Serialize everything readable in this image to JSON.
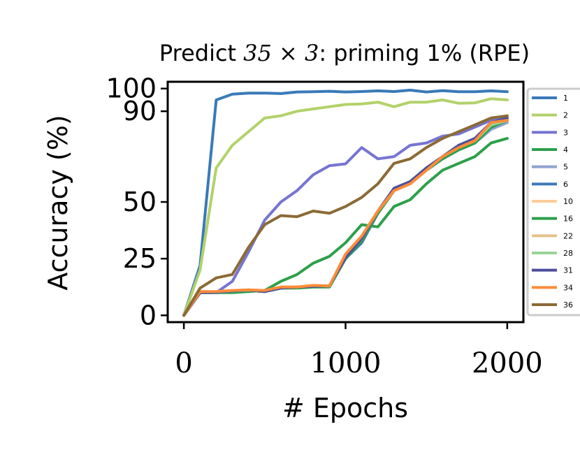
{
  "chart_data": {
    "type": "line",
    "title_prefix": "Predict",
    "title_math": "35 × 3",
    "title_suffix": ": priming 1% (RPE)",
    "xlabel": "# Epochs",
    "ylabel": "Accuracy (%)",
    "xlim": [
      -100,
      2100
    ],
    "ylim": [
      -3,
      103
    ],
    "xticks": [
      0,
      1000,
      2000
    ],
    "xtick_labels": [
      "0",
      "1000",
      "2000"
    ],
    "yticks": [
      0,
      25,
      50,
      90,
      100
    ],
    "ytick_labels": [
      "0",
      "25",
      "50",
      "90",
      "100"
    ],
    "grid": false,
    "legend_position": "right",
    "x": [
      0,
      100,
      200,
      300,
      400,
      500,
      600,
      700,
      800,
      900,
      1000,
      1100,
      1200,
      1300,
      1400,
      1500,
      1600,
      1700,
      1800,
      1900,
      2000
    ],
    "series": [
      {
        "name": "1",
        "color": "#3a7ab8",
        "values": [
          0,
          22,
          95,
          97.5,
          98,
          98,
          97.8,
          98.5,
          98.6,
          98.8,
          98.5,
          98.7,
          99,
          98.7,
          99.3,
          98.5,
          99.1,
          98.6,
          98.6,
          99,
          98.6
        ]
      },
      {
        "name": "2",
        "color": "#b2d26a",
        "values": [
          0,
          20,
          65,
          75,
          81,
          87,
          88,
          90,
          91,
          92,
          93,
          93.2,
          94,
          92,
          94,
          94,
          95,
          93.5,
          93.7,
          95.5,
          95
        ]
      },
      {
        "name": "3",
        "color": "#7674d3",
        "values": [
          0,
          10,
          10,
          15,
          28,
          42,
          50,
          55,
          62,
          66,
          66.8,
          74,
          69,
          70,
          75,
          76,
          79,
          80,
          83,
          86,
          87
        ]
      },
      {
        "name": "4",
        "color": "#2ca04a",
        "values": [
          0,
          10,
          10,
          10,
          10.5,
          11,
          15,
          18,
          23,
          26,
          32,
          40,
          39,
          48,
          51,
          58,
          64,
          67,
          70,
          76,
          78
        ]
      },
      {
        "name": "5",
        "color": "#8fa3cf",
        "values": [
          0,
          10,
          10,
          10.5,
          11,
          10.5,
          12,
          12.5,
          12.8,
          13,
          25,
          33,
          45,
          55,
          59,
          64,
          69,
          73,
          76,
          82,
          85
        ]
      },
      {
        "name": "6",
        "color": "#3a7ab8",
        "values": [
          0,
          10,
          10,
          10.5,
          11,
          10.5,
          12,
          12.5,
          12.8,
          13,
          25,
          32,
          45,
          55,
          58,
          64,
          69,
          73,
          76,
          83,
          86
        ]
      },
      {
        "name": "10",
        "color": "#ffcc99",
        "values": [
          0,
          10,
          10.2,
          10.8,
          11.2,
          10.8,
          12.5,
          12.5,
          13,
          13,
          26,
          34,
          45,
          55,
          58,
          64,
          70,
          74,
          76,
          84,
          86
        ]
      },
      {
        "name": "16",
        "color": "#2ca04a",
        "values": [
          0,
          10,
          10,
          10.5,
          11,
          10.5,
          12,
          12,
          12.5,
          12.5,
          25,
          33,
          45,
          55,
          58,
          64,
          69,
          73,
          76,
          83,
          86
        ]
      },
      {
        "name": "22",
        "color": "#e6c28a",
        "values": [
          0,
          10,
          10.2,
          10.8,
          11.2,
          10.8,
          12.3,
          12.5,
          13,
          13,
          26,
          34,
          46,
          55,
          58,
          64,
          70,
          74,
          77,
          84,
          86
        ]
      },
      {
        "name": "28",
        "color": "#98d594",
        "values": [
          0,
          10,
          10.2,
          10.8,
          11.2,
          10.8,
          12.3,
          12.5,
          13,
          13,
          26,
          34,
          46,
          56,
          59,
          65,
          70,
          75,
          77,
          84,
          86
        ]
      },
      {
        "name": "31",
        "color": "#4c4e9c",
        "values": [
          0,
          10,
          10.2,
          10.8,
          11.2,
          10.5,
          12,
          12.5,
          12.8,
          13,
          25.5,
          34,
          46,
          56,
          59,
          65,
          70,
          75,
          78,
          85,
          87
        ]
      },
      {
        "name": "34",
        "color": "#ff8c3a",
        "values": [
          0,
          10.5,
          10.5,
          11,
          11.2,
          11,
          12.5,
          12.5,
          13.2,
          13,
          27,
          35,
          46,
          55,
          58,
          64,
          70,
          74,
          77,
          85,
          86
        ]
      },
      {
        "name": "36",
        "color": "#8c6a35",
        "values": [
          0,
          12,
          16.5,
          18,
          30,
          40,
          44,
          43.5,
          46,
          45,
          48,
          52,
          58,
          67,
          69,
          74,
          78,
          81,
          84,
          87,
          88
        ]
      }
    ]
  }
}
